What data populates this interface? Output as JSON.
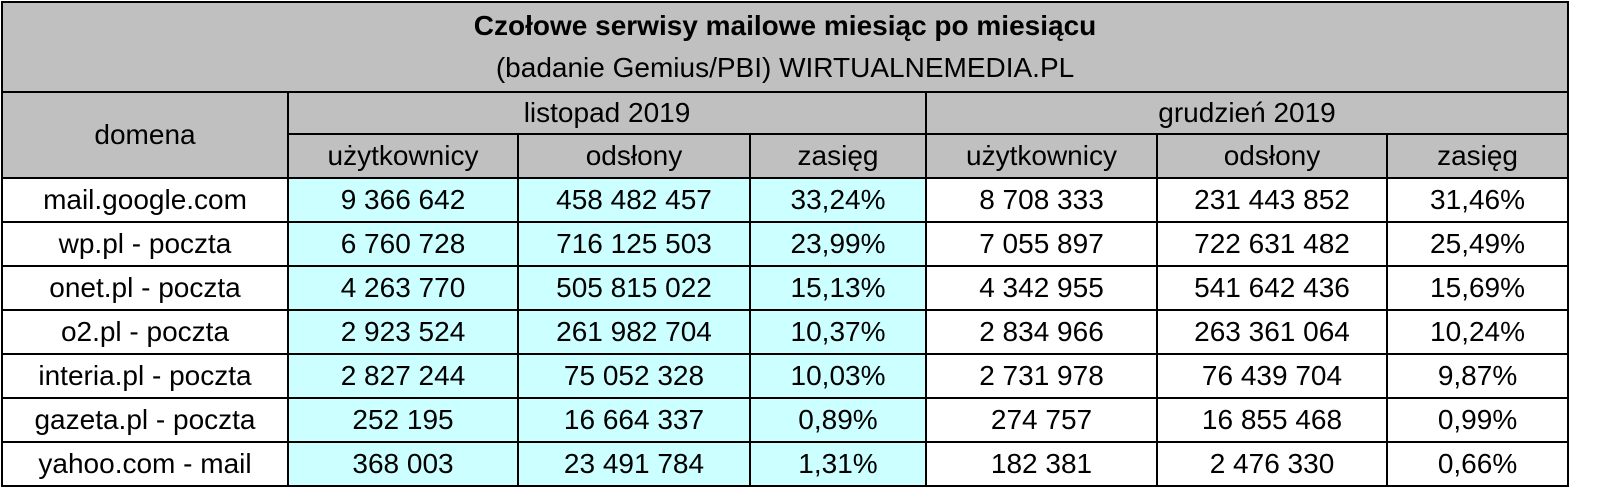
{
  "title": "Czołowe serwisy mailowe miesiąc po miesiącu",
  "subtitle": "(badanie Gemius/PBI) WIRTUALNEMEDIA.PL",
  "header": {
    "domain_label": "domena",
    "month1": "listopad 2019",
    "month2": "grudzień 2019",
    "columns": [
      "użytkownicy",
      "odsłony",
      "zasięg",
      "użytkownicy",
      "odsłony",
      "zasięg"
    ]
  },
  "rows": [
    {
      "domain": "mail.google.com",
      "nov": [
        "9 366 642",
        "458 482 457",
        "33,24%"
      ],
      "dec": [
        "8 708 333",
        "231 443 852",
        "31,46%"
      ]
    },
    {
      "domain": "wp.pl - poczta",
      "nov": [
        "6 760 728",
        "716 125 503",
        "23,99%"
      ],
      "dec": [
        "7 055 897",
        "722 631 482",
        "25,49%"
      ]
    },
    {
      "domain": "onet.pl - poczta",
      "nov": [
        "4 263 770",
        "505 815 022",
        "15,13%"
      ],
      "dec": [
        "4 342 955",
        "541 642 436",
        "15,69%"
      ]
    },
    {
      "domain": "o2.pl - poczta",
      "nov": [
        "2 923 524",
        "261 982 704",
        "10,37%"
      ],
      "dec": [
        "2 834 966",
        "263 361 064",
        "10,24%"
      ]
    },
    {
      "domain": "interia.pl - poczta",
      "nov": [
        "2 827 244",
        "75 052 328",
        "10,03%"
      ],
      "dec": [
        "2 731 978",
        "76 439 704",
        "9,87%"
      ]
    },
    {
      "domain": "gazeta.pl - poczta",
      "nov": [
        "252 195",
        "16 664 337",
        "0,89%"
      ],
      "dec": [
        "274 757",
        "16 855 468",
        "0,99%"
      ]
    },
    {
      "domain": "yahoo.com - mail",
      "nov": [
        "368 003",
        "23 491 784",
        "1,31%"
      ],
      "dec": [
        "182 381",
        "2 476 330",
        "0,66%"
      ]
    }
  ],
  "colors": {
    "header_bg": "#c0c0c0",
    "november_bg": "#ccffff",
    "december_bg": "#ffffff",
    "border": "#000000"
  }
}
